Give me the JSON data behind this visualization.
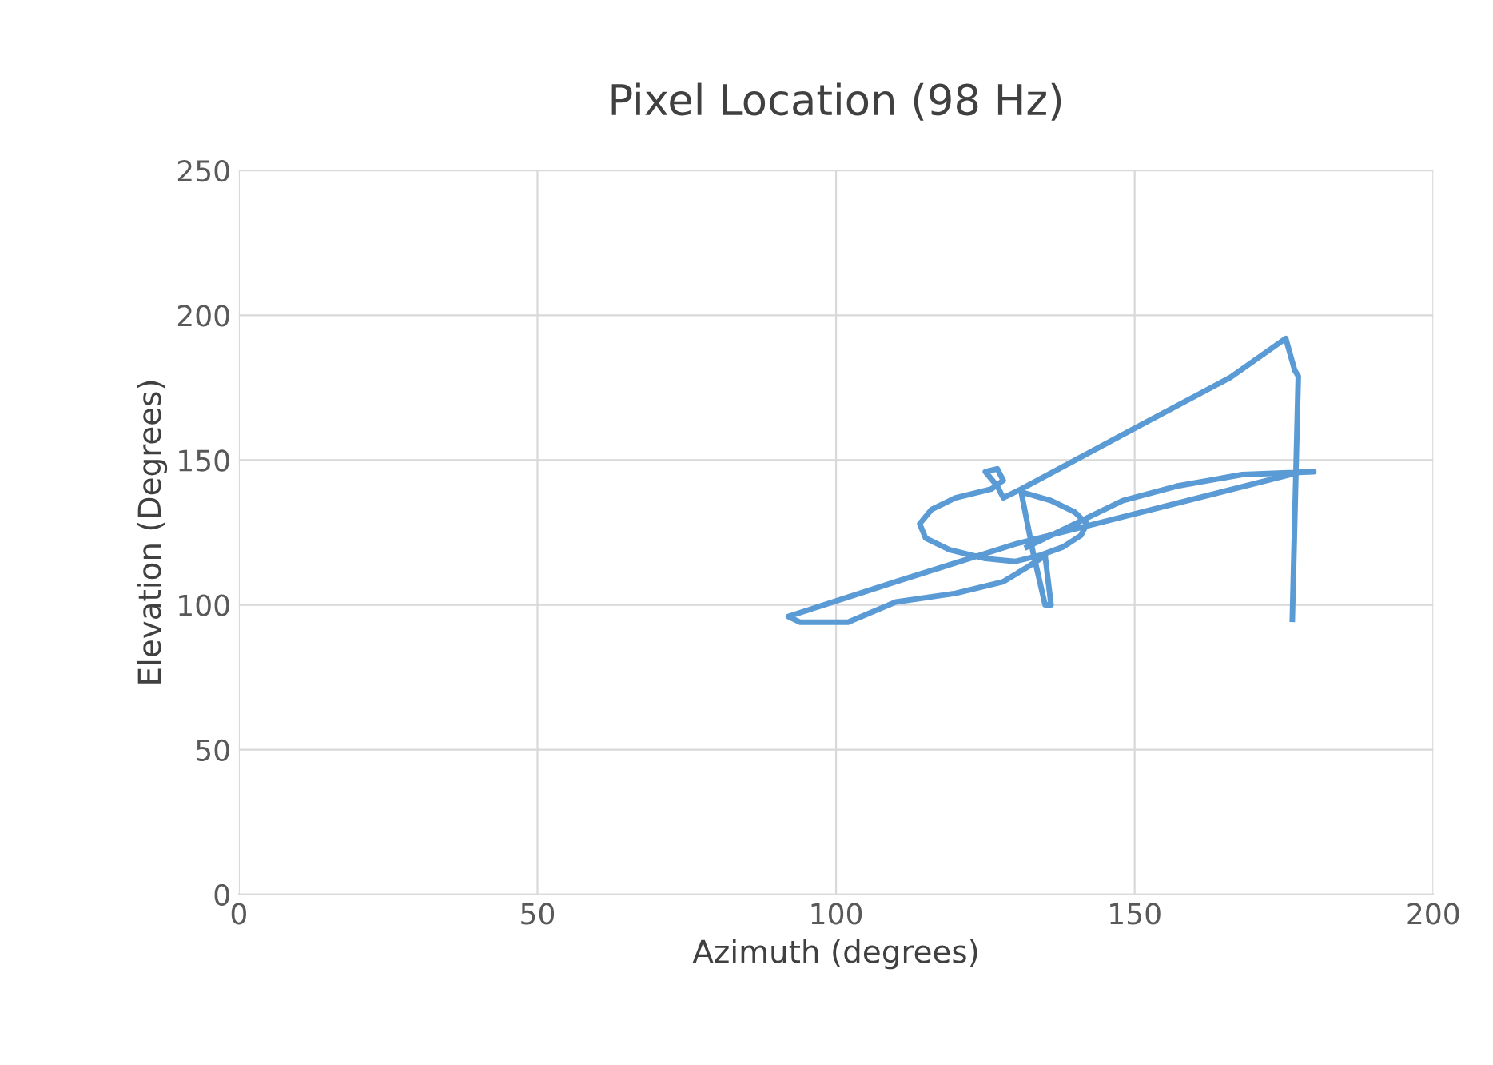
{
  "chart_data": {
    "type": "line",
    "title": "Pixel Location (98 Hz)",
    "xlabel": "Azimuth (degrees)",
    "ylabel": "Elevation (Degrees)",
    "series": [
      {
        "color": "#5b9bd5",
        "x": [
          176.4,
          177.4,
          176.8,
          175.3,
          166,
          150,
          131,
          128,
          127,
          125,
          127,
          128,
          126,
          120,
          116,
          114,
          115,
          119,
          125,
          130,
          134,
          138,
          141,
          142,
          140,
          136,
          131,
          133,
          135,
          136,
          135,
          132,
          128,
          120,
          110,
          102,
          94,
          92,
          110,
          130,
          178,
          180,
          168,
          157,
          148,
          140,
          132
        ],
        "values": [
          95,
          179,
          181,
          192,
          178.5,
          161,
          140,
          137,
          141,
          146,
          147,
          143,
          140,
          137,
          133,
          128,
          123,
          119,
          116,
          115,
          117,
          120,
          124,
          128,
          132,
          136,
          139,
          118,
          100,
          100,
          117,
          113,
          108,
          104,
          101,
          94,
          94,
          96,
          108,
          121,
          146,
          146,
          145,
          141,
          136,
          128,
          120
        ]
      }
    ],
    "xlim": [
      0,
      200
    ],
    "xticks": [
      0,
      50,
      100,
      150,
      200
    ],
    "ylim": [
      0,
      250
    ],
    "yticks": [
      0,
      50,
      100,
      150,
      200,
      250
    ],
    "grid": true,
    "marker": "none",
    "line_style": "solid"
  }
}
